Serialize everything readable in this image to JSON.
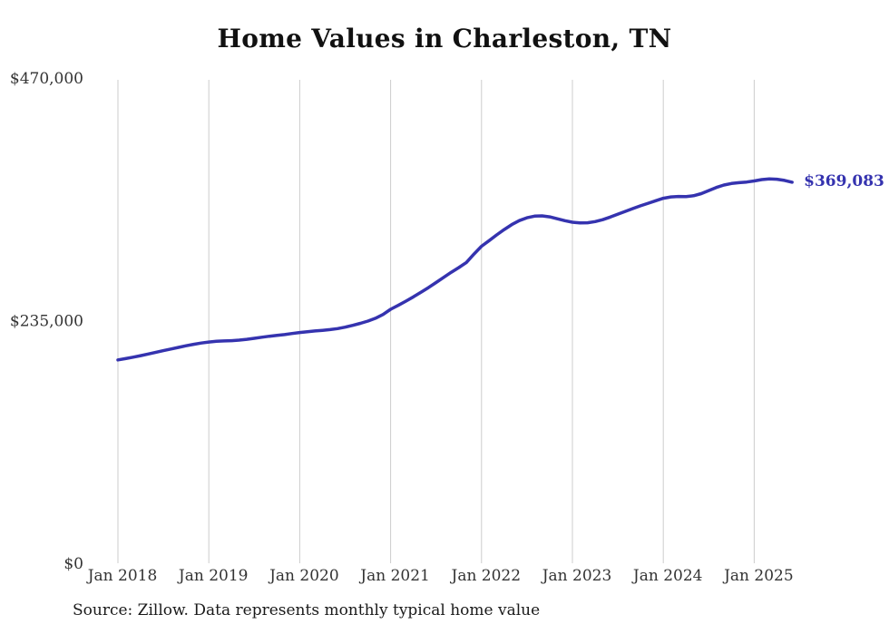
{
  "title": "Home Values in Charleston, TN",
  "source_note": "Source: Zillow. Data represents monthly typical home value",
  "chart_data": {
    "type": "line",
    "title": "Home Values in Charleston, TN",
    "xlabel": "",
    "ylabel": "",
    "ylim": [
      0,
      470000
    ],
    "grid": "vertical",
    "legend": "none",
    "line_color": "#3533af",
    "grid_color": "#cccccc",
    "end_label": "$369,083",
    "final_value": 369083,
    "x_tick_labels": [
      "Jan 2018",
      "Jan 2019",
      "Jan 2020",
      "Jan 2021",
      "Jan 2022",
      "Jan 2023",
      "Jan 2024",
      "Jan 2025"
    ],
    "y_ticks": [
      {
        "label": "$0",
        "value": 0
      },
      {
        "label": "$235,000",
        "value": 235000
      },
      {
        "label": "$470,000",
        "value": 470000
      }
    ],
    "series": [
      {
        "name": "Typical home value",
        "start_month": "2018-01",
        "frequency": "monthly",
        "values": [
          197000,
          198200,
          199600,
          201100,
          202700,
          204300,
          205900,
          207500,
          209100,
          210700,
          212100,
          213300,
          214300,
          215000,
          215300,
          215600,
          216100,
          216900,
          217900,
          218900,
          219900,
          220700,
          221500,
          222500,
          223500,
          224300,
          225000,
          225600,
          226300,
          227300,
          228700,
          230400,
          232400,
          234600,
          237300,
          241000,
          246000,
          249800,
          253800,
          258000,
          262400,
          267000,
          271900,
          276900,
          281800,
          286400,
          291300,
          299500,
          307000,
          312500,
          318000,
          323200,
          328000,
          331900,
          334600,
          336200,
          336500,
          335500,
          333700,
          331800,
          330300,
          329600,
          329800,
          330900,
          332800,
          335300,
          338100,
          340900,
          343600,
          346200,
          348700,
          351100,
          353500,
          354800,
          355300,
          355200,
          356000,
          358000,
          361000,
          364000,
          366300,
          367800,
          368600,
          369200,
          370300,
          371600,
          372300,
          372000,
          370800,
          369083
        ]
      }
    ]
  }
}
